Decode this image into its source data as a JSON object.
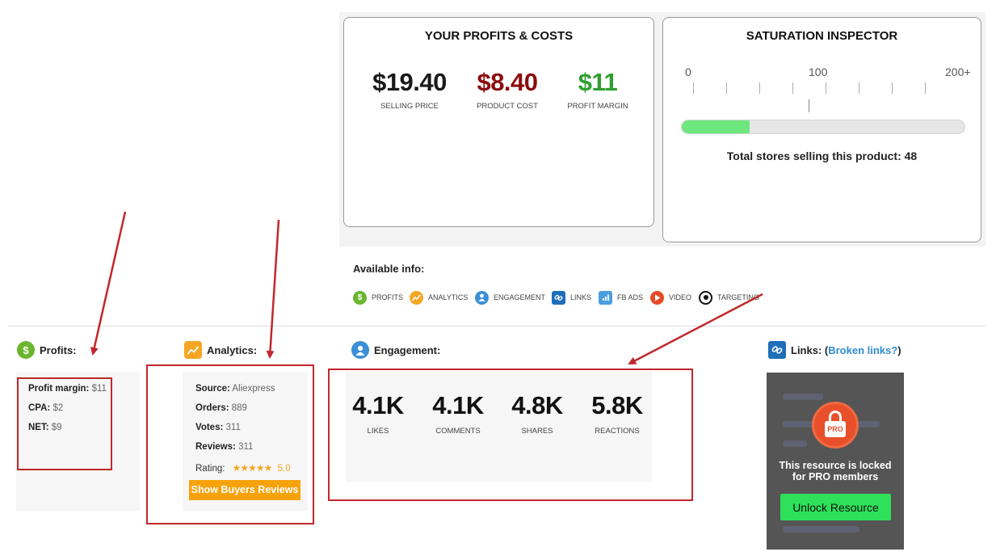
{
  "profits_costs": {
    "title": "YOUR PROFITS & COSTS",
    "selling_price": {
      "value": "$19.40",
      "label": "SELLING PRICE",
      "color": "#1a1a1a"
    },
    "product_cost": {
      "value": "$8.40",
      "label": "PRODUCT COST",
      "color": "#8b0d0d"
    },
    "profit_margin": {
      "value": "$11",
      "label": "PROFIT MARGIN",
      "color": "#2f9e2f"
    }
  },
  "saturation": {
    "title": "SATURATION INSPECTOR",
    "scale": [
      "0",
      "100",
      "200+"
    ],
    "fill_fraction": 0.24,
    "total_text": "Total stores selling this product: 48",
    "fill_color": "#6fe77f"
  },
  "available_info": {
    "title": "Available info:",
    "items": [
      {
        "icon": "dollar-icon",
        "label": "PROFITS",
        "color": "#6bb52f"
      },
      {
        "icon": "analytics-icon",
        "label": "ANALYTICS",
        "color": "#f5a623"
      },
      {
        "icon": "engagement-icon",
        "label": "ENGAGEMENT",
        "color": "#3a8fd6"
      },
      {
        "icon": "link-icon",
        "label": "LINKS",
        "color": "#1e6eb8"
      },
      {
        "icon": "fb-ads-icon",
        "label": "FB ADS",
        "color": "#4a9fe0"
      },
      {
        "icon": "video-icon",
        "label": "VIDEO",
        "color": "#e84a26"
      },
      {
        "icon": "targeting-icon",
        "label": "TARGETING",
        "color": "#111111"
      }
    ]
  },
  "profits": {
    "title": "Profits:",
    "profit_margin": {
      "label": "Profit margin:",
      "value": "$11"
    },
    "cpa": {
      "label": "CPA:",
      "value": "$2"
    },
    "net": {
      "label": "NET:",
      "value": "$9"
    }
  },
  "analytics": {
    "title": "Analytics:",
    "source": {
      "label": "Source:",
      "value": "Aliexpress"
    },
    "orders": {
      "label": "Orders:",
      "value": "889"
    },
    "votes": {
      "label": "Votes:",
      "value": "311"
    },
    "reviews": {
      "label": "Reviews:",
      "value": "311"
    },
    "rating": {
      "label": "Rating:",
      "stars": "★★★★★",
      "value": "5.0"
    },
    "button": "Show Buyers Reviews"
  },
  "engagement": {
    "title": "Engagement:",
    "stats": [
      {
        "value": "4.1K",
        "label": "LIKES"
      },
      {
        "value": "4.1K",
        "label": "COMMENTS"
      },
      {
        "value": "4.8K",
        "label": "SHARES"
      },
      {
        "value": "5.8K",
        "label": "REACTIONS"
      }
    ]
  },
  "links": {
    "title": "Links: (",
    "broken": "Broken links?",
    "close": ")",
    "badge": "PRO",
    "locked_text_1": "This resource is locked",
    "locked_text_2": "for PRO members",
    "unlock": "Unlock Resource"
  }
}
